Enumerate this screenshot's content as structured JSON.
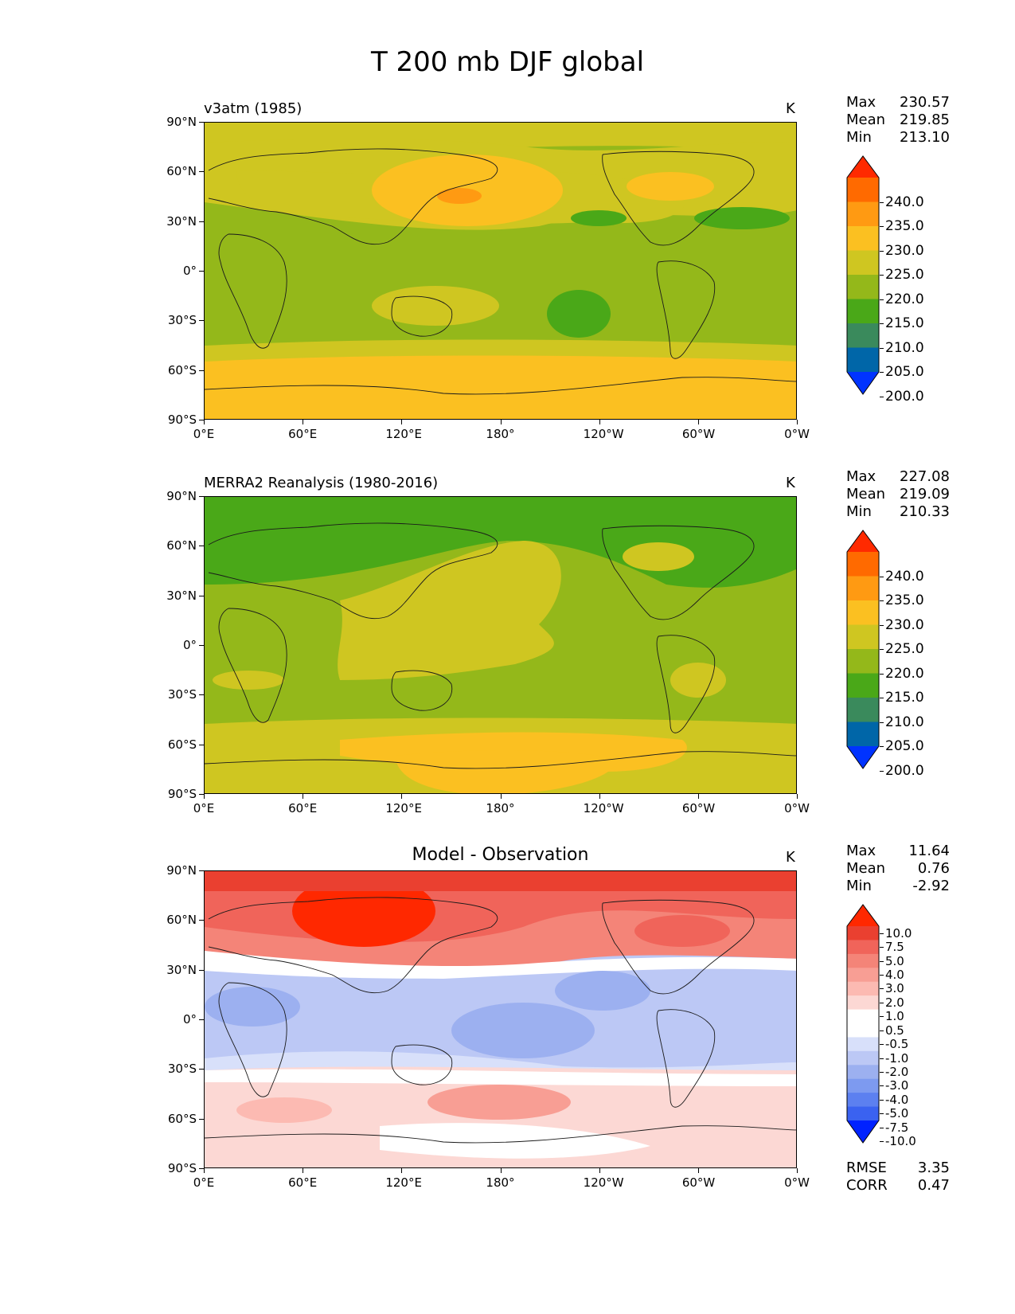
{
  "title": "T 200 mb DJF global",
  "panels": [
    {
      "title": "v3atm (1985)",
      "unit": "K",
      "stats": [
        {
          "label": "Max",
          "value": "230.57"
        },
        {
          "label": "Mean",
          "value": "219.85"
        },
        {
          "label": "Min",
          "value": "213.10"
        }
      ],
      "colorbar_labels": [
        "240.0",
        "235.0",
        "230.0",
        "225.0",
        "220.0",
        "215.0",
        "210.0",
        "205.0",
        "200.0"
      ]
    },
    {
      "title": "MERRA2 Reanalysis (1980-2016)",
      "unit": "K",
      "stats": [
        {
          "label": "Max",
          "value": "227.08"
        },
        {
          "label": "Mean",
          "value": "219.09"
        },
        {
          "label": "Min",
          "value": "210.33"
        }
      ],
      "colorbar_labels": [
        "240.0",
        "235.0",
        "230.0",
        "225.0",
        "220.0",
        "215.0",
        "210.0",
        "205.0",
        "200.0"
      ]
    },
    {
      "title": "Model - Observation",
      "unit": "K",
      "stats": [
        {
          "label": "Max",
          "value": "11.64"
        },
        {
          "label": "Mean",
          "value": "0.76"
        },
        {
          "label": "Min",
          "value": "-2.92"
        }
      ],
      "colorbar_labels": [
        "10.0",
        "7.5",
        "5.0",
        "4.0",
        "3.0",
        "2.0",
        "1.0",
        "0.5",
        "-0.5",
        "-1.0",
        "-2.0",
        "-3.0",
        "-4.0",
        "-5.0",
        "-7.5",
        "-10.0"
      ],
      "metrics": [
        {
          "label": "RMSE",
          "value": "3.35"
        },
        {
          "label": "CORR",
          "value": "0.47"
        }
      ]
    }
  ],
  "axes": {
    "lat_ticks": [
      "90°N",
      "60°N",
      "30°N",
      "0°",
      "30°S",
      "60°S",
      "90°S"
    ],
    "lon_ticks": [
      "0°E",
      "60°E",
      "120°E",
      "180°",
      "120°W",
      "60°W",
      "0°W"
    ]
  },
  "colors": {
    "abs_scale": [
      "#0033ff",
      "#0066a8",
      "#3a8a5c",
      "#4aa818",
      "#94b81a",
      "#cfc621",
      "#fbc021",
      "#ff9a12",
      "#ff6a00",
      "#ff2a00"
    ],
    "diff_scale": [
      "#0022ff",
      "#3a62f0",
      "#5c80f0",
      "#7d9af0",
      "#9cb0f0",
      "#bcc8f5",
      "#d8e0fa",
      "#ffffff",
      "#ffffff",
      "#fcd8d4",
      "#fcbab2",
      "#f89e94",
      "#f48478",
      "#f0645a",
      "#ea4030",
      "#ff2800"
    ]
  }
}
